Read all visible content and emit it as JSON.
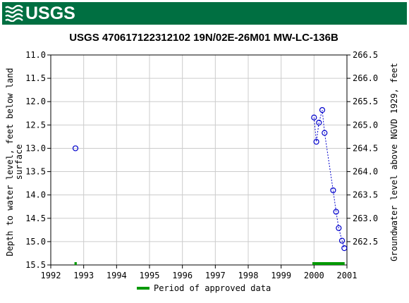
{
  "header": {
    "logo_text": "USGS",
    "brand_color": "#006f41"
  },
  "chart_data": {
    "type": "scatter",
    "title": "USGS 470617122312102 19N/02E-26M01 MW-LC-136B",
    "ylabel_left_line1": "Depth to water level, feet below land",
    "ylabel_left_line2": "surface",
    "ylabel_right": "Groundwater level above NGVD 1929, feet",
    "xlim": [
      1992,
      2001
    ],
    "ylim": [
      11.0,
      15.5
    ],
    "y_inverted": true,
    "x_ticks": [
      "1992",
      "1993",
      "1994",
      "1995",
      "1996",
      "1997",
      "1998",
      "1999",
      "2000",
      "2001"
    ],
    "y_ticks_left": [
      "11.0",
      "11.5",
      "12.0",
      "12.5",
      "13.0",
      "13.5",
      "14.0",
      "14.5",
      "15.0",
      "15.5"
    ],
    "y_ticks_right": [
      "266.5",
      "266.0",
      "265.5",
      "265.0",
      "264.5",
      "264.0",
      "263.5",
      "263.0",
      "262.5"
    ],
    "right_axis_offset": 277.5,
    "grid": true,
    "marker_color": "#0000cc",
    "approved_color": "#009900",
    "series": [
      {
        "points": [
          [
            1992.75,
            13.0
          ],
          [
            2000.0,
            12.34
          ],
          [
            2000.07,
            12.86
          ],
          [
            2000.15,
            12.45
          ],
          [
            2000.25,
            12.18
          ],
          [
            2000.32,
            12.67
          ],
          [
            2000.58,
            13.9
          ],
          [
            2000.67,
            14.36
          ],
          [
            2000.75,
            14.71
          ],
          [
            2000.85,
            14.98
          ],
          [
            2000.92,
            15.14
          ]
        ],
        "connected_from_index": 1
      }
    ],
    "approved_periods": [
      [
        1992.72,
        1992.79
      ],
      [
        1999.95,
        2000.93
      ]
    ],
    "legend": {
      "label": "Period of approved data",
      "placement": "bottom-center"
    }
  }
}
